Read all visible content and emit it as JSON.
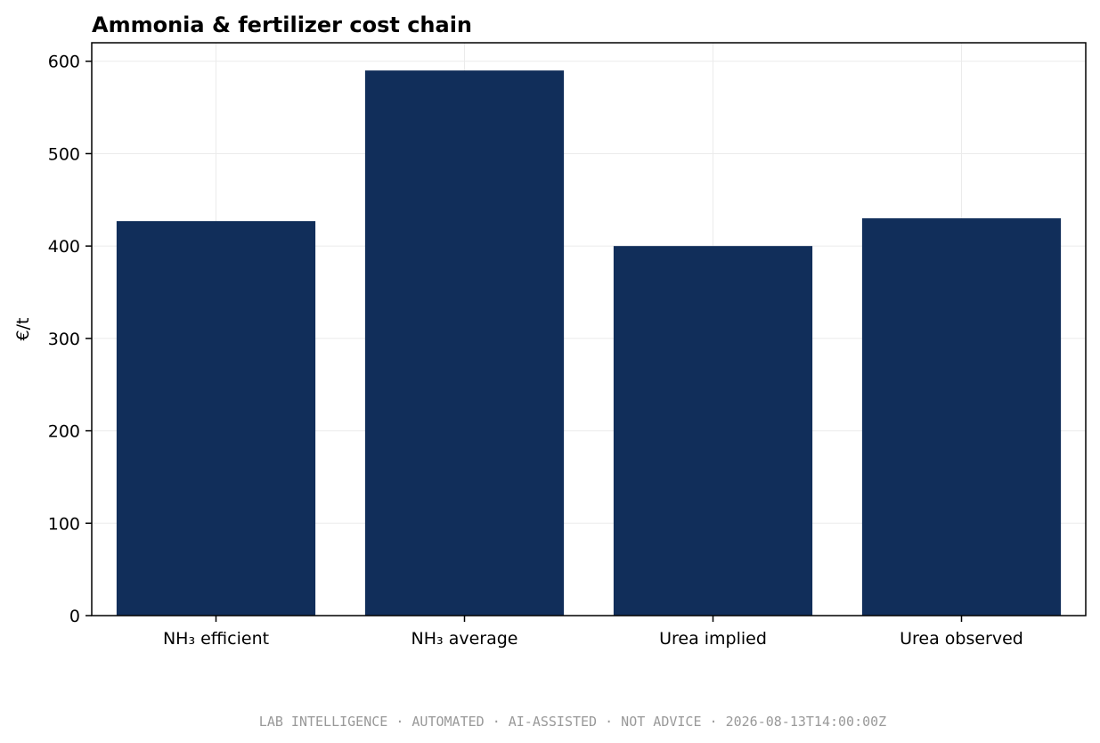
{
  "chart_data": {
    "type": "bar",
    "title": "Ammonia & fertilizer cost chain",
    "xlabel": "",
    "ylabel": "€/t",
    "categories": [
      "NH₃ efficient",
      "NH₃ average",
      "Urea implied",
      "Urea observed"
    ],
    "values": [
      427,
      590,
      400,
      430
    ],
    "ylim": [
      0,
      620
    ],
    "yticks": [
      0,
      100,
      200,
      300,
      400,
      500,
      600
    ],
    "grid": true,
    "bar_color": "#112e5a"
  },
  "footer": {
    "text": "LAB INTELLIGENCE · AUTOMATED · AI-ASSISTED · NOT ADVICE · 2026-08-13T14:00:00Z"
  }
}
